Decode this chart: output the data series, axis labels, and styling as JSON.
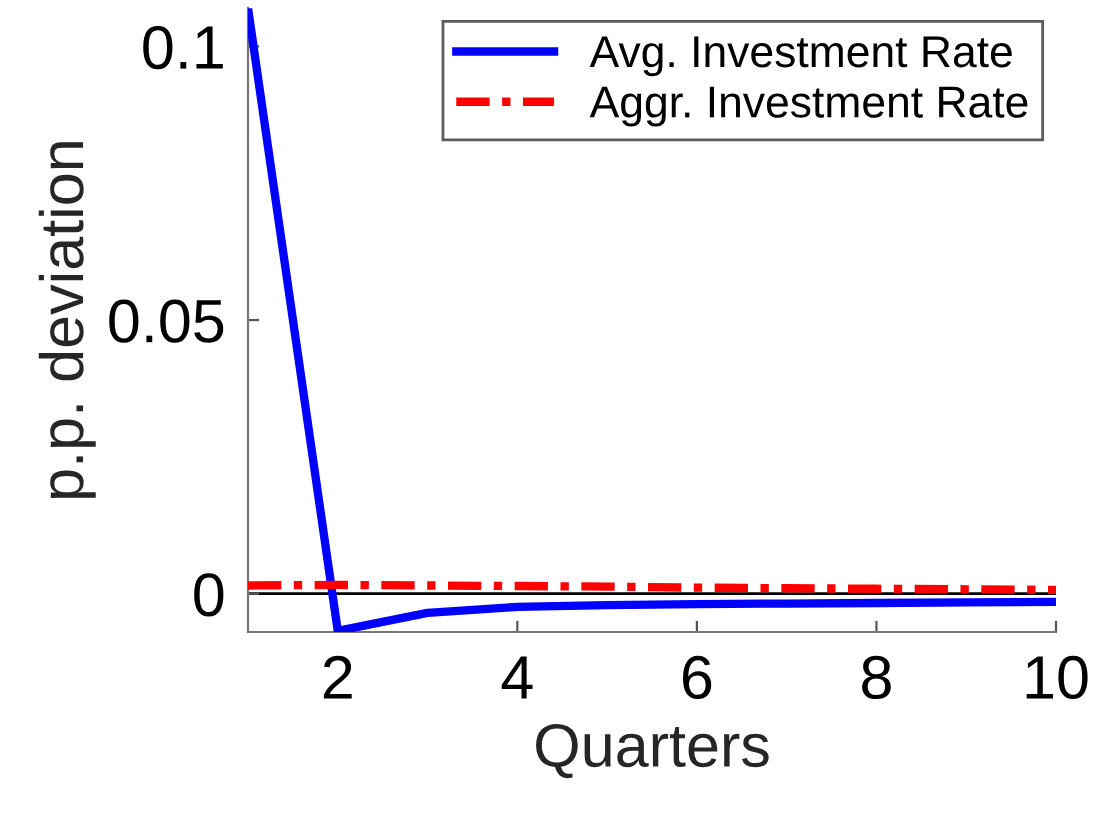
{
  "chart_data": {
    "type": "line",
    "xlabel": "Quarters",
    "ylabel": "p.p. deviation",
    "x": [
      1,
      2,
      3,
      4,
      5,
      6,
      7,
      8,
      9,
      10
    ],
    "series": [
      {
        "name": "Avg. Investment Rate",
        "color": "#0000ff",
        "line_style": "solid",
        "values": [
          0.107,
          -0.0068,
          -0.0035,
          -0.0024,
          -0.0021,
          -0.0019,
          -0.0018,
          -0.0017,
          -0.0016,
          -0.0015
        ]
      },
      {
        "name": "Aggr. Investment Rate",
        "color": "#ff0000",
        "line_style": "dashed",
        "values": [
          0.0015,
          0.0016,
          0.0015,
          0.0014,
          0.0013,
          0.0011,
          0.001,
          0.0009,
          0.0008,
          0.0007
        ]
      }
    ],
    "xlim": [
      1,
      10
    ],
    "xticks": [
      2,
      4,
      6,
      8,
      10
    ],
    "ylim": [
      -0.007,
      0.107
    ],
    "yticks": [
      0,
      0.05,
      0.1
    ],
    "ref_lines": [
      {
        "axis": "y",
        "value": 0,
        "color": "#000000"
      }
    ],
    "grid": false,
    "legend": "top right",
    "marker": "none"
  }
}
